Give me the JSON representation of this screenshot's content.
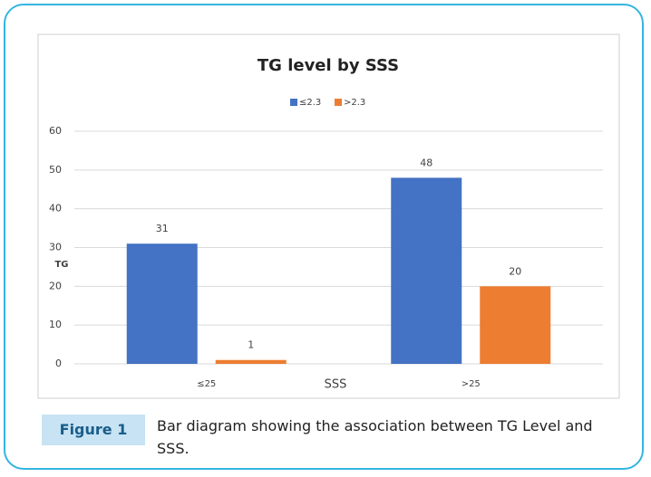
{
  "chart_data": {
    "type": "bar",
    "title": "TG level by SSS",
    "xlabel": "SSS",
    "ylabel": "TG",
    "categories": [
      "≤25",
      ">25"
    ],
    "series": [
      {
        "name": "≤2.3",
        "color": "#4472c4",
        "values": [
          31,
          48
        ]
      },
      {
        "name": ">2.3",
        "color": "#ed7d31",
        "values": [
          1,
          20
        ]
      }
    ],
    "ylim": [
      0,
      60
    ],
    "yticks": [
      0,
      10,
      20,
      30,
      40,
      50,
      60
    ],
    "grid": true,
    "legend": "top"
  },
  "caption": {
    "label": "Figure 1",
    "text": "Bar diagram showing the association between TG Level and SSS."
  }
}
